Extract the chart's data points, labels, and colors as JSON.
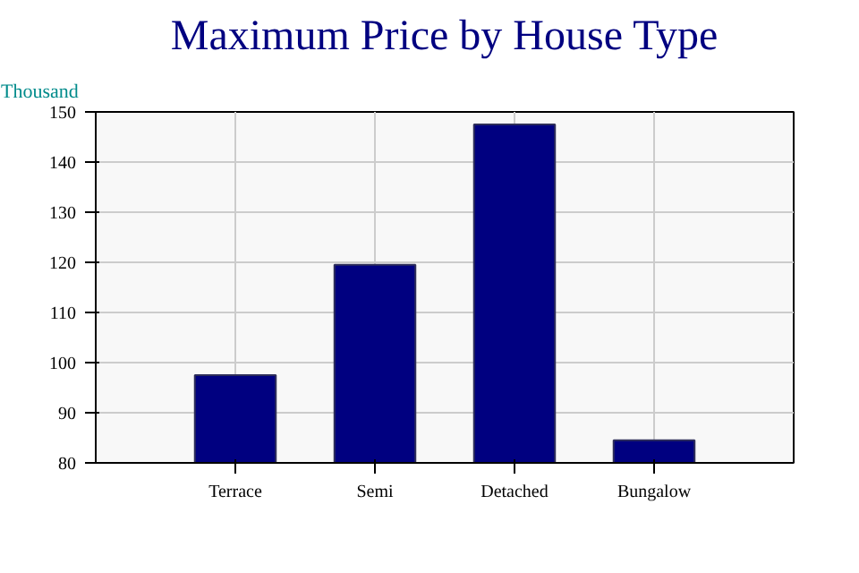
{
  "chart_data": {
    "type": "bar",
    "title": "Maximum Price by House Type",
    "ylabel": "Thousand",
    "categories": [
      "Terrace",
      "Semi",
      "Detached",
      "Bungalow"
    ],
    "values": [
      97.5,
      119.5,
      147.5,
      84.5
    ],
    "color": "#000080",
    "ylim": [
      80,
      150
    ],
    "yticks": [
      80,
      90,
      100,
      110,
      120,
      130,
      140,
      150
    ],
    "grid": true
  }
}
